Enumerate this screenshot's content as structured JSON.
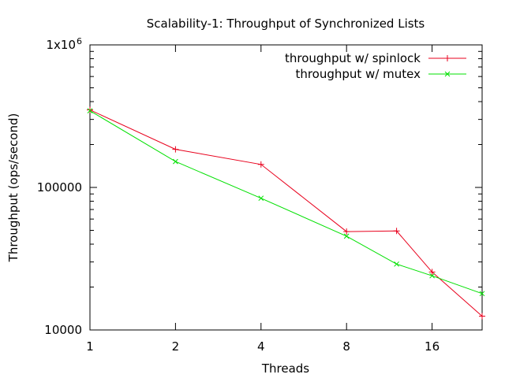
{
  "chart_data": {
    "type": "line",
    "title": "Scalability-1: Throughput of Synchronized Lists",
    "xlabel": "Threads",
    "ylabel": "Throughput (ops/second)",
    "x_scale": "log2",
    "y_scale": "log10",
    "xlim": [
      1,
      24
    ],
    "ylim": [
      10000,
      1000000
    ],
    "x_ticks": [
      1,
      2,
      4,
      8,
      16
    ],
    "x_tick_labels": [
      "1",
      "2",
      "4",
      "8",
      "16"
    ],
    "y_ticks": [
      10000,
      100000,
      1000000
    ],
    "y_tick_labels": [
      "10000",
      "100000",
      "1x10"
    ],
    "y_tick_label_top_sup": "6",
    "legend_position": "top-right",
    "grid": false,
    "series": [
      {
        "name": "throughput w/ spinlock",
        "color": "#e8001c",
        "marker": "plus",
        "x": [
          1,
          2,
          4,
          8,
          12,
          16,
          24
        ],
        "y": [
          350000,
          185000,
          145000,
          49000,
          49500,
          25500,
          12500
        ]
      },
      {
        "name": "throughput w/ mutex",
        "color": "#00e000",
        "marker": "cross",
        "x": [
          1,
          2,
          4,
          8,
          12,
          16,
          24
        ],
        "y": [
          345000,
          152000,
          84000,
          45500,
          29000,
          24000,
          18000
        ]
      }
    ]
  }
}
